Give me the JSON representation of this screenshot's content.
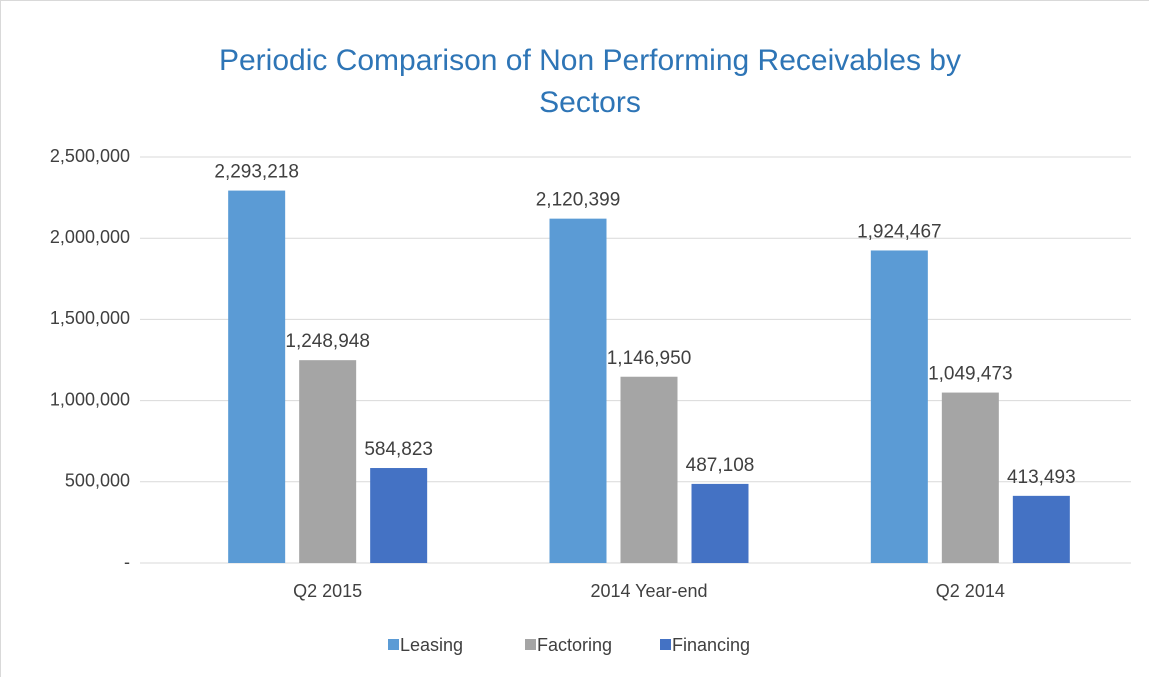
{
  "chart_data": {
    "type": "bar",
    "title": "Periodic Comparison of Non Performing Receivables by Sectors",
    "categories": [
      "Q2 2015",
      "2014 Year-end",
      "Q2 2014"
    ],
    "series": [
      {
        "name": "Leasing",
        "color": "#5b9bd5",
        "values": [
          2293218,
          2120399,
          1924467
        ],
        "value_labels": [
          "2,293,218",
          "2,120,399",
          "1,924,467"
        ]
      },
      {
        "name": "Factoring",
        "color": "#a5a5a5",
        "values": [
          1248948,
          1146950,
          1049473
        ],
        "value_labels": [
          "1,248,948",
          "1,146,950",
          "1,049,473"
        ]
      },
      {
        "name": "Financing",
        "color": "#4472c4",
        "values": [
          584823,
          487108,
          413493
        ],
        "value_labels": [
          "584,823",
          "487,108",
          "413,493"
        ]
      }
    ],
    "ylim": [
      0,
      2500000
    ],
    "yticks": [
      {
        "value": 0,
        "label": "-"
      },
      {
        "value": 500000,
        "label": "500,000"
      },
      {
        "value": 1000000,
        "label": "1,000,000"
      },
      {
        "value": 1500000,
        "label": "1,500,000"
      },
      {
        "value": 2000000,
        "label": "2,000,000"
      },
      {
        "value": 2500000,
        "label": "2,500,000"
      }
    ],
    "grid": true,
    "legend": "bottom"
  }
}
